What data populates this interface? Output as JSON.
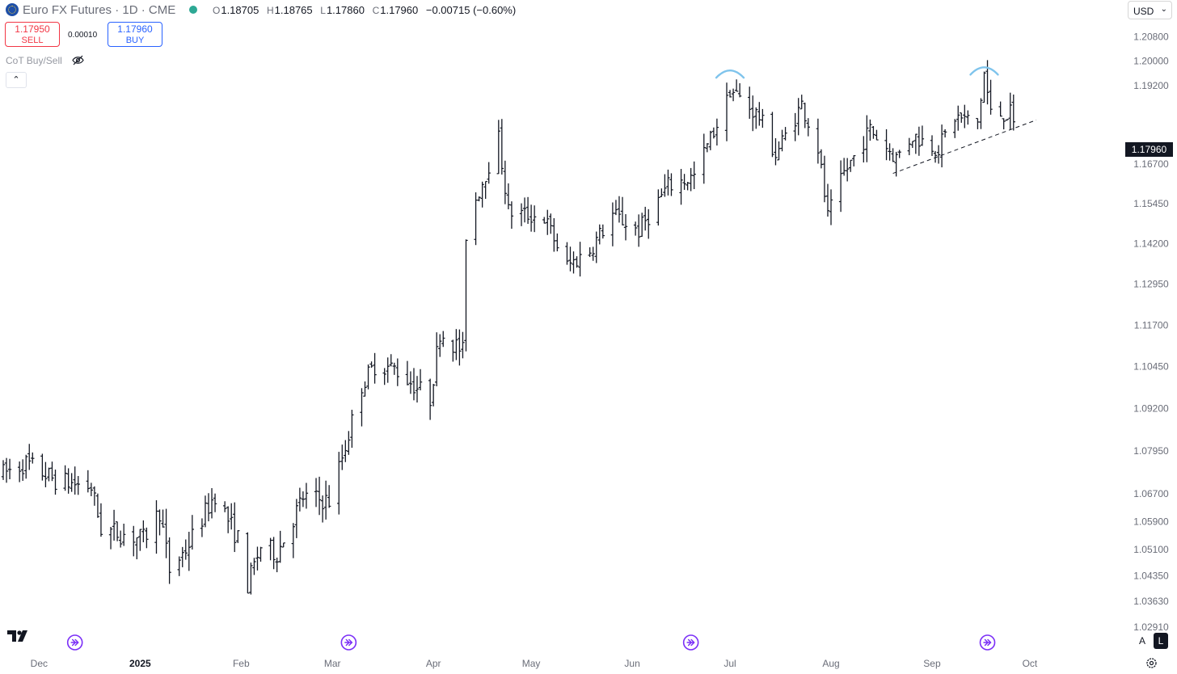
{
  "header": {
    "title": "Euro FX Futures · 1D · CME",
    "ohlc": [
      {
        "key": "O",
        "value": "1.18705"
      },
      {
        "key": "H",
        "value": "1.18765"
      },
      {
        "key": "L",
        "value": "1.17860"
      },
      {
        "key": "C",
        "value": "1.17960"
      }
    ],
    "change": "−0.00715 (−0.60%)",
    "currency": "USD"
  },
  "trade": {
    "sell_price": "1.17950",
    "sell_label": "SELL",
    "spread": "0.00010",
    "buy_price": "1.17960",
    "buy_label": "BUY"
  },
  "indicator": {
    "label": "CoT Buy/Sell"
  },
  "colors": {
    "bars": "#131722",
    "arcs": "#7fc4ec",
    "sell": "#f23645",
    "buy": "#2962ff",
    "events": "#7b2ff7"
  },
  "footer": {
    "auto_label": "A",
    "log_label": "L"
  },
  "chart_data": {
    "type": "ohlc-bar",
    "title": "",
    "xlabel": "",
    "ylabel": "",
    "y_scale": "log",
    "ylim": [
      1.0291,
      1.2161
    ],
    "last_price": "1.17960",
    "y_ticks": [
      "1.20800",
      "1.20000",
      "1.19200",
      "1.16700",
      "1.15450",
      "1.14200",
      "1.12950",
      "1.11700",
      "1.10450",
      "1.09200",
      "1.07950",
      "1.06700",
      "1.05900",
      "1.05100",
      "1.04350",
      "1.03630",
      "1.02910"
    ],
    "x_ticks": [
      "Dec",
      "2025",
      "Feb",
      "Mar",
      "Apr",
      "May",
      "Jun",
      "Jul",
      "Aug",
      "Sep",
      "Oct"
    ],
    "x_range": [
      "2024-11-20",
      "2025-10-03"
    ],
    "event_markers": [
      "2024-12-12",
      "2025-03-06",
      "2025-06-19",
      "2025-09-18"
    ],
    "keyframes": [
      [
        "2024-11-20",
        1.073
      ],
      [
        "2024-11-27",
        1.076
      ],
      [
        "2024-12-06",
        1.071
      ],
      [
        "2024-12-17",
        1.069
      ],
      [
        "2024-12-20",
        1.057
      ],
      [
        "2025-01-02",
        1.054
      ],
      [
        "2025-01-07",
        1.062
      ],
      [
        "2025-01-10",
        1.045
      ],
      [
        "2025-01-15",
        1.051
      ],
      [
        "2025-01-24",
        1.067
      ],
      [
        "2025-01-31",
        1.054
      ],
      [
        "2025-02-03",
        1.041
      ],
      [
        "2025-02-07",
        1.052
      ],
      [
        "2025-02-12",
        1.05
      ],
      [
        "2025-02-20",
        1.066
      ],
      [
        "2025-02-28",
        1.065
      ],
      [
        "2025-03-05",
        1.081
      ],
      [
        "2025-03-10",
        1.099
      ],
      [
        "2025-03-14",
        1.105
      ],
      [
        "2025-03-20",
        1.104
      ],
      [
        "2025-03-31",
        1.095
      ],
      [
        "2025-04-03",
        1.115
      ],
      [
        "2025-04-10",
        1.109
      ],
      [
        "2025-04-11",
        1.145
      ],
      [
        "2025-04-14",
        1.156
      ],
      [
        "2025-04-21",
        1.175
      ],
      [
        "2025-04-24",
        1.152
      ],
      [
        "2025-05-05",
        1.15
      ],
      [
        "2025-05-12",
        1.135
      ],
      [
        "2025-05-19",
        1.14
      ],
      [
        "2025-05-26",
        1.151
      ],
      [
        "2025-06-03",
        1.146
      ],
      [
        "2025-06-12",
        1.16
      ],
      [
        "2025-06-20",
        1.163
      ],
      [
        "2025-06-30",
        1.187
      ],
      [
        "2025-07-01",
        1.191
      ],
      [
        "2025-07-10",
        1.182
      ],
      [
        "2025-07-15",
        1.17
      ],
      [
        "2025-07-23",
        1.186
      ],
      [
        "2025-07-28",
        1.172
      ],
      [
        "2025-07-31",
        1.15
      ],
      [
        "2025-08-05",
        1.164
      ],
      [
        "2025-08-13",
        1.178
      ],
      [
        "2025-08-21",
        1.169
      ],
      [
        "2025-08-26",
        1.176
      ],
      [
        "2025-09-03",
        1.172
      ],
      [
        "2025-09-08",
        1.182
      ],
      [
        "2025-09-15",
        1.18
      ],
      [
        "2025-09-17",
        1.196
      ],
      [
        "2025-09-19",
        1.183
      ],
      [
        "2025-09-25",
        1.183
      ],
      [
        "2025-09-26",
        1.179
      ]
    ],
    "trendline": {
      "style": "dashed",
      "from": [
        "2025-08-20",
        1.164
      ],
      "to": [
        "2025-10-03",
        1.181
      ]
    },
    "highlights": [
      {
        "shape": "arc",
        "date": "2025-07-01",
        "price": 1.197
      },
      {
        "shape": "arc",
        "date": "2025-09-17",
        "price": 1.198
      }
    ]
  }
}
